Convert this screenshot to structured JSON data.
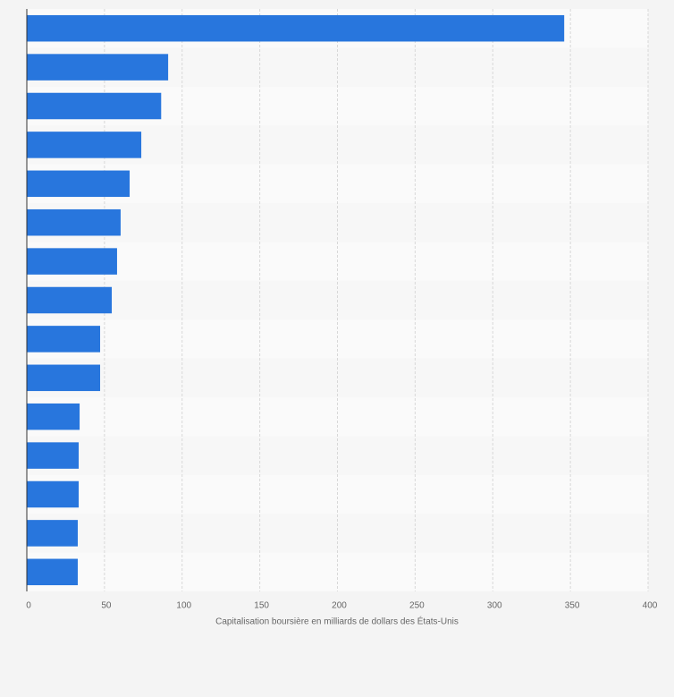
{
  "chart_data": {
    "type": "barh",
    "x_label": "Capitalisation boursière en milliards de dollars des États-Unis",
    "categories": [
      null,
      null,
      null,
      null,
      null,
      null,
      null,
      null,
      null,
      null,
      null,
      null,
      null,
      null,
      null
    ],
    "values": [
      346,
      91,
      86.5,
      73.7,
      66.2,
      60.4,
      58.1,
      54.7,
      47.2,
      47.2,
      34,
      33.4,
      33.4,
      32.8,
      32.8
    ],
    "color": "#2876dd",
    "xlim": [
      0,
      400
    ],
    "xticks": [
      0,
      50,
      100,
      150,
      200,
      250,
      300,
      350,
      400
    ],
    "grid": true
  }
}
